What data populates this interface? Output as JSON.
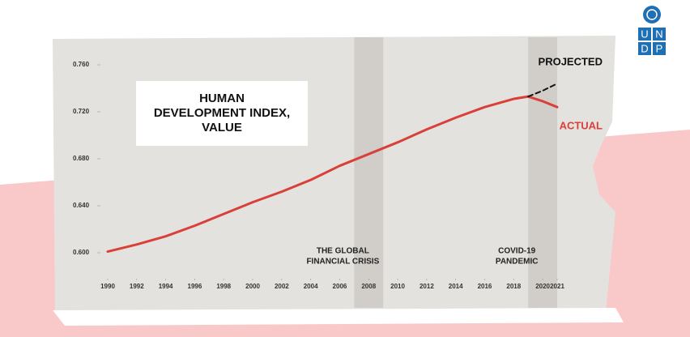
{
  "chart_data": {
    "type": "line",
    "title": [
      "HUMAN",
      "DEVELOPMENT INDEX,",
      "VALUE"
    ],
    "x": [
      1990,
      1992,
      1994,
      1996,
      1998,
      2000,
      2002,
      2004,
      2006,
      2008,
      2010,
      2012,
      2014,
      2016,
      2018,
      2019,
      2020,
      2021
    ],
    "series": [
      {
        "name": "ACTUAL",
        "color": "#d9403a",
        "dashed": false,
        "values": [
          0.601,
          0.607,
          0.614,
          0.623,
          0.633,
          0.643,
          0.652,
          0.662,
          0.674,
          0.684,
          0.694,
          0.705,
          0.715,
          0.724,
          0.731,
          0.733,
          0.729,
          0.724
        ]
      },
      {
        "name": "PROJECTED",
        "color": "#111111",
        "dashed": true,
        "values": [
          null,
          null,
          null,
          null,
          null,
          null,
          null,
          null,
          null,
          null,
          null,
          null,
          null,
          null,
          null,
          0.733,
          0.738,
          0.744
        ]
      }
    ],
    "xlim": [
      1990,
      2021
    ],
    "xticks": [
      1990,
      1992,
      1994,
      1996,
      1998,
      2000,
      2002,
      2004,
      2006,
      2008,
      2010,
      2012,
      2014,
      2016,
      2018,
      2020,
      2021
    ],
    "ylim": [
      0.6,
      0.76
    ],
    "yticks": [
      {
        "value": 0.6,
        "label": "0.600"
      },
      {
        "value": 0.64,
        "label": "0.640"
      },
      {
        "value": 0.68,
        "label": "0.680"
      },
      {
        "value": 0.72,
        "label": "0.720"
      },
      {
        "value": 0.76,
        "label": "0.760"
      }
    ],
    "highlights": [
      {
        "start": 2007,
        "end": 2009,
        "label": [
          "THE GLOBAL",
          "FINANCIAL CRISIS"
        ]
      },
      {
        "start": 2019,
        "end": 2021,
        "label": [
          "COVID-19",
          "PANDEMIC"
        ]
      }
    ]
  },
  "logo": [
    "U",
    "N",
    "D",
    "P"
  ]
}
